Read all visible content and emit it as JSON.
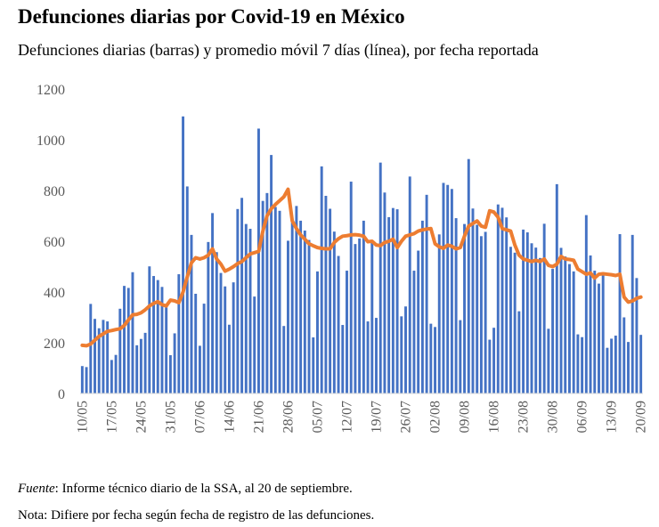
{
  "header": {
    "title": "Defunciones diarias por Covid-19 en México",
    "subtitle": "Defunciones diarias (barras) y promedio móvil 7 días (línea), por fecha reportada"
  },
  "footer": {
    "source_label": "Fuente",
    "source_text": ": Informe técnico diario de la SSA, al 20 de septiembre.",
    "note": "Nota: Difiere por fecha según fecha de registro de las defunciones."
  },
  "colors": {
    "bars": "#4472C4",
    "line": "#ED7D31",
    "axis": "#D9D9D9",
    "tick_text": "#595959"
  },
  "chart_data": {
    "type": "bar",
    "title": "Defunciones diarias por Covid-19 en México",
    "xlabel": "",
    "ylabel": "",
    "ylim": [
      0,
      1200
    ],
    "yticks": [
      0,
      200,
      400,
      600,
      800,
      1000,
      1200
    ],
    "grid": false,
    "legend": "none",
    "x_tick_labels": [
      "10/05",
      "17/05",
      "24/05",
      "31/05",
      "07/06",
      "14/06",
      "21/06",
      "28/06",
      "05/07",
      "12/07",
      "19/07",
      "26/07",
      "02/08",
      "09/08",
      "16/08",
      "23/08",
      "30/08",
      "06/09",
      "13/09",
      "20/09"
    ],
    "x_tick_every": 7,
    "series": [
      {
        "name": "Defunciones diarias",
        "type": "bar",
        "values": [
          108,
          104,
          353,
          294,
          257,
          290,
          284,
          132,
          152,
          334,
          424,
          416,
          478,
          190,
          215,
          239,
          501,
          463,
          447,
          420,
          339,
          151,
          237,
          470,
          1092,
          816,
          625,
          393,
          188,
          354,
          597,
          711,
          557,
          475,
          422,
          271,
          438,
          727,
          771,
          668,
          649,
          382,
          1044,
          759,
          790,
          940,
          735,
          720,
          266,
          602,
          675,
          739,
          681,
          642,
          605,
          221,
          481,
          895,
          779,
          728,
          638,
          542,
          270,
          484,
          835,
          589,
          611,
          681,
          284,
          601,
          298,
          910,
          792,
          695,
          731,
          726,
          304,
          343,
          855,
          484,
          563,
          681,
          783,
          275,
          262,
          627,
          830,
          822,
          806,
          691,
          289,
          668,
          924,
          729,
          665,
          620,
          637,
          212,
          259,
          745,
          732,
          694,
          578,
          555,
          324,
          646,
          635,
          592,
          575,
          534,
          669,
          255,
          491,
          825,
          574,
          540,
          510,
          481,
          233,
          222,
          703,
          544,
          484,
          433,
          471,
          180,
          216,
          228,
          628,
          300,
          203,
          625,
          455,
          231
        ],
        "color": "#4472C4"
      },
      {
        "name": "Promedio móvil 7 días",
        "type": "line",
        "values": [
          190,
          188,
          195,
          210,
          225,
          235,
          245,
          248,
          252,
          255,
          268,
          290,
          310,
          312,
          318,
          330,
          345,
          355,
          362,
          350,
          345,
          368,
          365,
          358,
          400,
          460,
          515,
          535,
          530,
          535,
          545,
          570,
          530,
          510,
          482,
          490,
          500,
          512,
          520,
          535,
          550,
          555,
          560,
          640,
          700,
          728,
          745,
          760,
          775,
          805,
          680,
          650,
          625,
          608,
          590,
          582,
          575,
          572,
          570,
          570,
          595,
          610,
          620,
          622,
          625,
          626,
          624,
          620,
          598,
          600,
          585,
          583,
          595,
          600,
          608,
          575,
          600,
          620,
          625,
          630,
          640,
          645,
          648,
          650,
          590,
          578,
          572,
          585,
          580,
          570,
          575,
          620,
          660,
          670,
          680,
          660,
          655,
          720,
          715,
          695,
          650,
          645,
          640,
          585,
          545,
          530,
          525,
          520,
          525,
          520,
          530,
          505,
          500,
          510,
          540,
          530,
          528,
          525,
          490,
          480,
          470,
          475,
          455,
          470,
          472,
          470,
          468,
          465,
          470,
          380,
          360,
          365,
          375,
          380
        ]
      }
    ]
  }
}
